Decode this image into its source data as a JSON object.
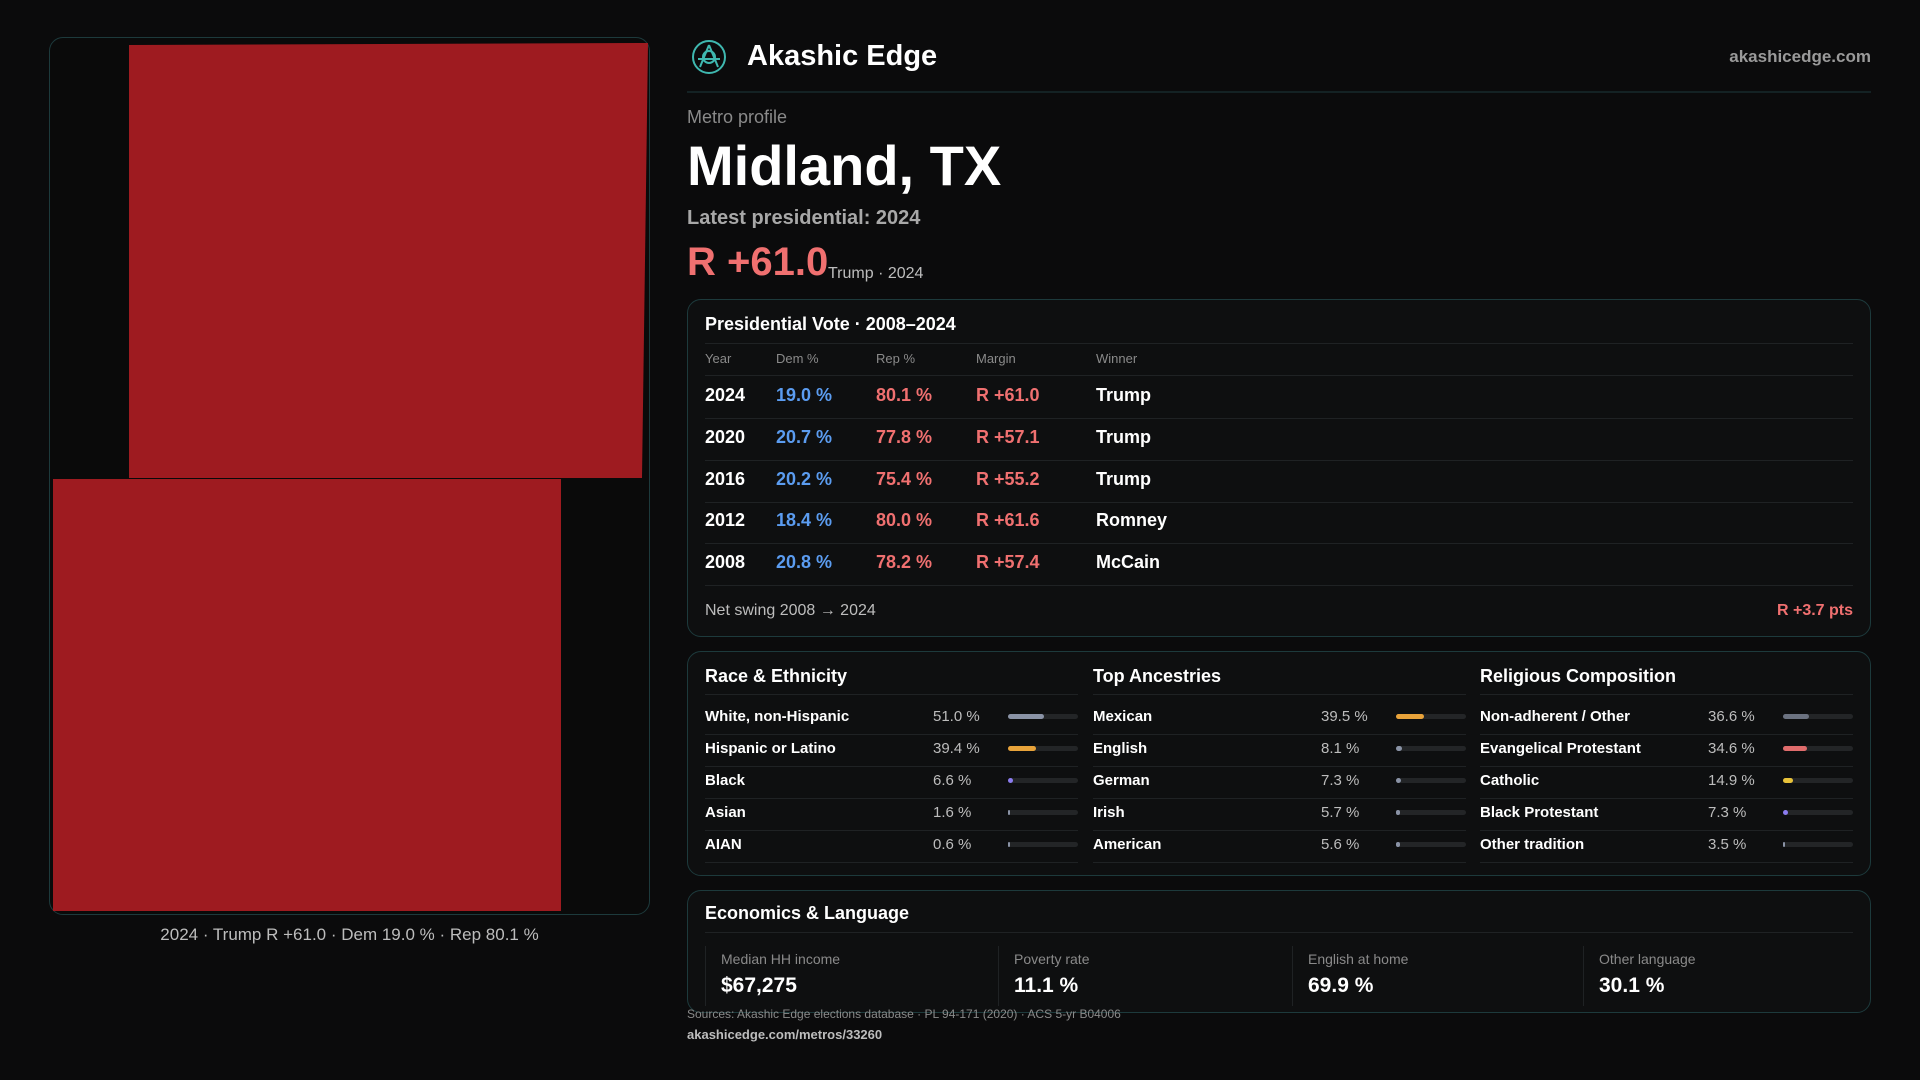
{
  "header": {
    "brand": "Akashic Edge",
    "site": "akashicedge.com"
  },
  "map": {
    "caption": "2024 · Trump R +61.0 · Dem 19.0 % · Rep 80.1 %"
  },
  "profile": {
    "kicker": "Metro profile",
    "name": "Midland, TX",
    "latest": "Latest presidential: 2024",
    "margin": "R +61.0",
    "margin_note": "Trump · 2024"
  },
  "vote": {
    "title": "Presidential Vote · 2008–2024",
    "columns": [
      "Year",
      "Dem %",
      "Rep %",
      "Margin",
      "Winner"
    ],
    "rows": [
      [
        "2024",
        "19.0 %",
        "80.1 %",
        "R +61.0",
        "Trump"
      ],
      [
        "2020",
        "20.7 %",
        "77.8 %",
        "R +57.1",
        "Trump"
      ],
      [
        "2016",
        "20.2 %",
        "75.4 %",
        "R +55.2",
        "Trump"
      ],
      [
        "2012",
        "18.4 %",
        "80.0 %",
        "R +61.6",
        "Romney"
      ],
      [
        "2008",
        "20.8 %",
        "78.2 %",
        "R +57.4",
        "McCain"
      ]
    ],
    "swing_label": "Net swing 2008 → 2024",
    "swing_value": "R +3.7 pts"
  },
  "demographics": [
    {
      "title": "Race & Ethnicity",
      "rows": [
        {
          "name": "White, non-Hispanic",
          "pct": {
            "value": 51.0,
            "label": "51.0 %"
          },
          "color": "#8a93a6"
        },
        {
          "name": "Hispanic or Latino",
          "pct": {
            "value": 39.4,
            "label": "39.4 %"
          },
          "color": "#e8a33a"
        },
        {
          "name": "Black",
          "pct": {
            "value": 6.6,
            "label": "6.6 %"
          },
          "color": "#8b7cf0"
        },
        {
          "name": "Asian",
          "pct": {
            "value": 1.6,
            "label": "1.6 %"
          },
          "color": "#8a93a6"
        },
        {
          "name": "AIAN",
          "pct": {
            "value": 0.6,
            "label": "0.6 %"
          },
          "color": "#8a93a6"
        }
      ]
    },
    {
      "title": "Top Ancestries",
      "rows": [
        {
          "name": "Mexican",
          "pct": {
            "value": 39.5,
            "label": "39.5 %"
          },
          "color": "#e8a33a"
        },
        {
          "name": "English",
          "pct": {
            "value": 8.1,
            "label": "8.1 %"
          },
          "color": "#8a93a6"
        },
        {
          "name": "German",
          "pct": {
            "value": 7.3,
            "label": "7.3 %"
          },
          "color": "#8a93a6"
        },
        {
          "name": "Irish",
          "pct": {
            "value": 5.7,
            "label": "5.7 %"
          },
          "color": "#8a93a6"
        },
        {
          "name": "American",
          "pct": {
            "value": 5.6,
            "label": "5.6 %"
          },
          "color": "#8a93a6"
        }
      ]
    },
    {
      "title": "Religious Composition",
      "rows": [
        {
          "name": "Non-adherent / Other",
          "pct": {
            "value": 36.6,
            "label": "36.6 %"
          },
          "color": "#6b7280"
        },
        {
          "name": "Evangelical Protestant",
          "pct": {
            "value": 34.6,
            "label": "34.6 %"
          },
          "color": "#e06c6c"
        },
        {
          "name": "Catholic",
          "pct": {
            "value": 14.9,
            "label": "14.9 %"
          },
          "color": "#e8c23a"
        },
        {
          "name": "Black Protestant",
          "pct": {
            "value": 7.3,
            "label": "7.3 %"
          },
          "color": "#8b7cf0"
        },
        {
          "name": "Other tradition",
          "pct": {
            "value": 3.5,
            "label": "3.5 %"
          },
          "color": "#8a93a6"
        }
      ]
    }
  ],
  "economics": {
    "title": "Economics & Language",
    "cells": [
      {
        "label": "Median HH income",
        "value": "$67,275"
      },
      {
        "label": "Poverty rate",
        "value": "11.1 %"
      },
      {
        "label": "English at home",
        "value": "69.9 %"
      },
      {
        "label": "Other language",
        "value": "30.1 %"
      }
    ]
  },
  "footer": {
    "sources": "Sources: Akashic Edge elections database · PL 94-171 (2020) · ACS 5-yr B04006",
    "url": "akashicedge.com/metros/33260"
  }
}
